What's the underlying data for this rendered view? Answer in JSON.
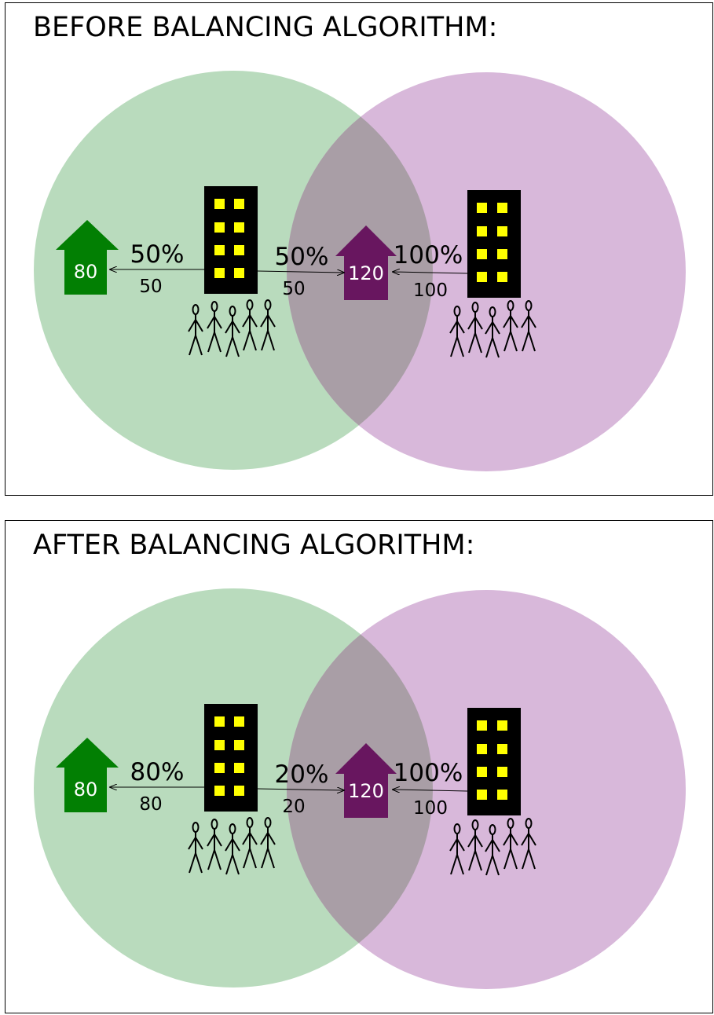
{
  "colors": {
    "green_region": "#b9dbbd",
    "purple_region": "#d8b8da",
    "overlap_region": "#a99ea6",
    "green_house": "#027f03",
    "purple_house": "#68165f",
    "building": "#000000",
    "window": "#ffff00"
  },
  "panels": [
    {
      "title": "BEFORE BALANCING ALGORITHM:",
      "left_building_to_green": {
        "percent": "50%",
        "amount": "50"
      },
      "left_building_to_purple": {
        "percent": "50%",
        "amount": "50"
      },
      "right_building_to_purple": {
        "percent": "100%",
        "amount": "100"
      },
      "green_house_capacity": "80",
      "purple_house_capacity": "120"
    },
    {
      "title": "AFTER BALANCING ALGORITHM:",
      "left_building_to_green": {
        "percent": "80%",
        "amount": "80"
      },
      "left_building_to_purple": {
        "percent": "20%",
        "amount": "20"
      },
      "right_building_to_purple": {
        "percent": "100%",
        "amount": "100"
      },
      "green_house_capacity": "80",
      "purple_house_capacity": "120"
    }
  ],
  "icons": {
    "green_house": "house-icon",
    "purple_house": "house-icon",
    "building": "building-icon",
    "people": "stick-figure-icon"
  }
}
